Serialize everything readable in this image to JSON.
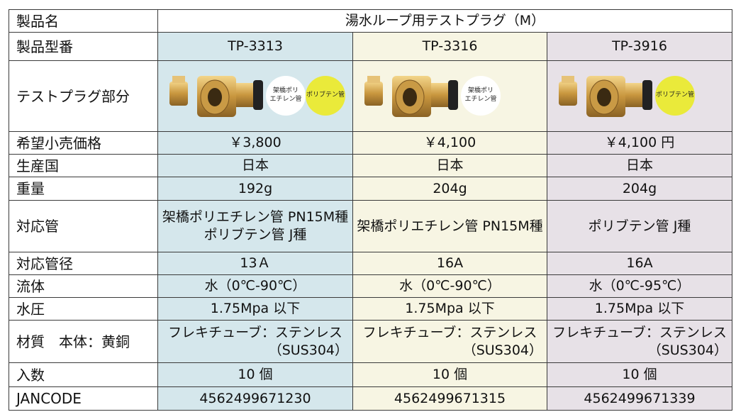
{
  "header": {
    "label": "製品名",
    "value": "湯水ループ用テストプラグ（M）"
  },
  "rows": [
    {
      "label": "製品型番",
      "cells": [
        "TP-3313",
        "TP-3316",
        "TP-3916"
      ]
    },
    {
      "label": "テストプラグ部分",
      "badges": [
        [
          "架橋ポリ\nエチレン管",
          "ポリブテン管"
        ],
        [
          "架橋ポリ\nエチレン管"
        ],
        [
          "ポリブテン管"
        ]
      ]
    },
    {
      "label": "希望小売価格",
      "cells": [
        "￥3,800",
        "￥4,100",
        "￥4,100 円"
      ]
    },
    {
      "label": "生産国",
      "cells": [
        "日本",
        "日本",
        "日本"
      ]
    },
    {
      "label": "重量",
      "cells": [
        "192g",
        "204g",
        "204g"
      ]
    },
    {
      "label": "対応管",
      "cells": [
        [
          "架橋ポリエチレン管 PN15M種",
          "ポリブテン管 J種"
        ],
        "架橋ポリエチレン管 PN15M種",
        "ポリブテン管 J種"
      ]
    },
    {
      "label": "対応管径",
      "cells": [
        "13Ａ",
        "16A",
        "16A"
      ]
    },
    {
      "label": "流体",
      "cells": [
        "水（0℃-90℃）",
        "水（0℃-90℃）",
        "水（0℃-95℃）"
      ]
    },
    {
      "label": "水圧",
      "cells": [
        "1.75Mpa 以下",
        "1.75Mpa 以下",
        "1.75Mpa 以下"
      ]
    },
    {
      "label": "材質　本体：黄銅",
      "cells": [
        [
          "フレキチューブ：ステンレス",
          "（SUS304）"
        ],
        [
          "フレキチューブ：ステンレス",
          "（SUS304）"
        ],
        [
          "フレキチューブ：ステンレス",
          "（SUS304）"
        ]
      ]
    },
    {
      "label": "入数",
      "cells": [
        "10 個",
        "10 個",
        "10 個"
      ]
    },
    {
      "label": "JANCODE",
      "cells": [
        "4562499671230",
        "4562499671315",
        "4562499671339"
      ]
    }
  ]
}
